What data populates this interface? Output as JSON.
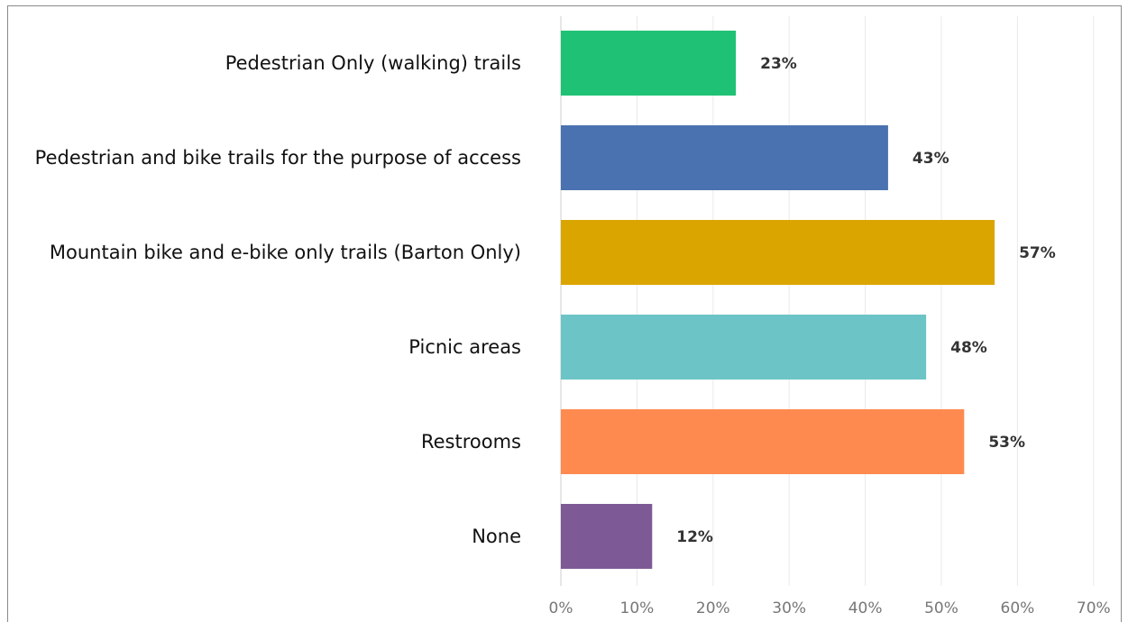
{
  "chart_data": {
    "type": "bar",
    "orientation": "horizontal",
    "categories": [
      "Pedestrian Only (walking) trails",
      "Pedestrian and bike trails for the purpose of access",
      "Mountain bike and e-bike only trails (Barton Only)",
      "Picnic areas",
      "Restrooms",
      "None"
    ],
    "values": [
      23,
      43,
      57,
      48,
      53,
      12
    ],
    "value_labels": [
      "23%",
      "43%",
      "57%",
      "48%",
      "53%",
      "12%"
    ],
    "colors": [
      "#1fc274",
      "#4a72b0",
      "#dba500",
      "#6cc4c6",
      "#ff8a50",
      "#7d5a95"
    ],
    "xlim": [
      0,
      70
    ],
    "xticks": [
      0,
      10,
      20,
      30,
      40,
      50,
      60,
      70
    ],
    "xtick_labels": [
      "0%",
      "10%",
      "20%",
      "30%",
      "40%",
      "50%",
      "60%",
      "70%"
    ],
    "grid": true,
    "legend": "none",
    "title": "",
    "xlabel": "",
    "ylabel": ""
  }
}
